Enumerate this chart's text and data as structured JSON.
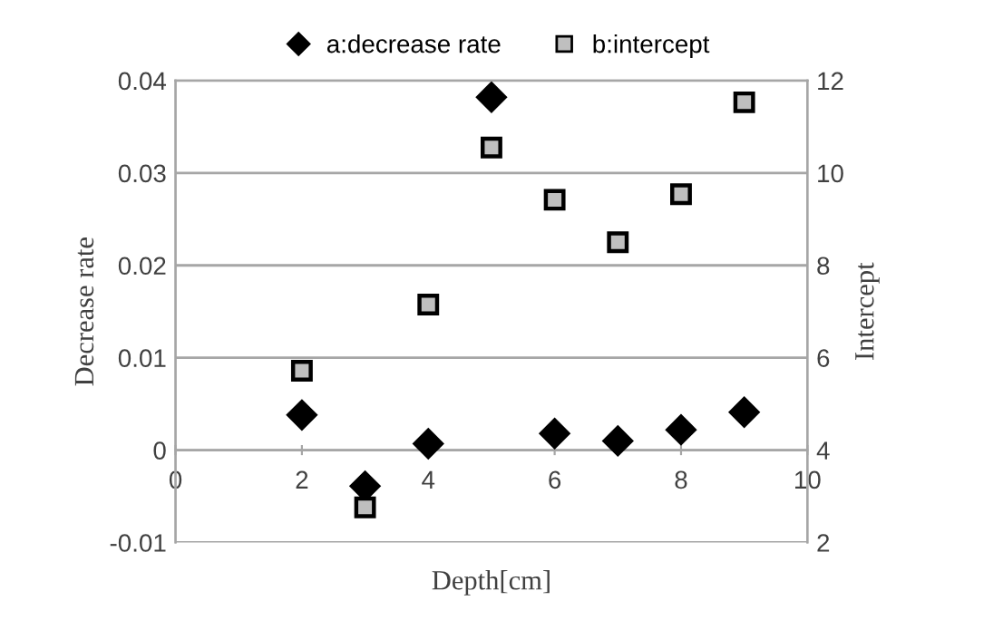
{
  "chart_data": {
    "type": "scatter",
    "xlabel": "Depth[cm]",
    "ylabel": "Decrease rate",
    "y2label": "Intercept",
    "xlim": [
      0,
      10
    ],
    "xticks": [
      0,
      2,
      4,
      6,
      8,
      10
    ],
    "ylim": [
      -0.01,
      0.04
    ],
    "yticks": [
      -0.01,
      0,
      0.01,
      0.02,
      0.03,
      0.04
    ],
    "y2lim": [
      2,
      12
    ],
    "y2ticks": [
      2,
      4,
      6,
      8,
      10,
      12
    ],
    "grid": "y",
    "legend": "top",
    "series": [
      {
        "name": "a:decrease rate",
        "color": "#000000",
        "marker": "diamond",
        "x": [
          2,
          3,
          4,
          5,
          6,
          7,
          8,
          9
        ],
        "values": [
          0.0038,
          -0.0039,
          0.0007,
          0.0382,
          0.0018,
          0.001,
          0.0022,
          0.0041
        ]
      },
      {
        "name": "b:intercept",
        "color": "#bfbfbf",
        "marker": "square",
        "axis": "y2",
        "x": [
          2,
          3,
          4,
          5,
          6,
          7,
          8,
          9
        ],
        "values": [
          5.72,
          2.76,
          7.15,
          10.55,
          9.42,
          8.5,
          9.54,
          11.53
        ]
      }
    ]
  }
}
